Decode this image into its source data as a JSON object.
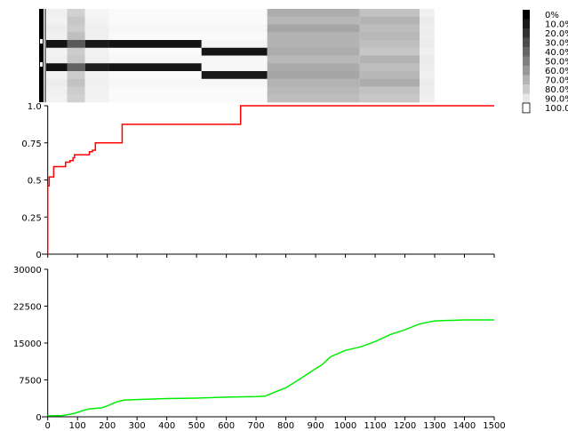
{
  "chart_data": [
    {
      "type": "heatmap",
      "x_range": [
        0,
        1500
      ],
      "colorbar": {
        "labels": [
          "0%",
          "10.0%",
          "20.0%",
          "30.0%",
          "40.0%",
          "50.0%",
          "60.0%",
          "70.0%",
          "80.0%",
          "90.0%",
          "100.0%"
        ],
        "values": [
          0,
          10,
          20,
          30,
          40,
          50,
          60,
          70,
          80,
          90,
          100
        ],
        "colors": [
          "#000000",
          "#1a1a1a",
          "#333333",
          "#4d4d4d",
          "#666666",
          "#808080",
          "#999999",
          "#b3b3b3",
          "#cccccc",
          "#e6e6e6",
          "#ffffff"
        ]
      },
      "rows": [
        {
          "segments": [
            [
              0,
              70,
              0.06
            ],
            [
              70,
              130,
              0.18
            ],
            [
              130,
              210,
              0.04
            ],
            [
              210,
              740,
              0.02
            ],
            [
              740,
              1050,
              0.32
            ],
            [
              1050,
              1250,
              0.24
            ],
            [
              1250,
              1300,
              0.06
            ]
          ]
        },
        {
          "segments": [
            [
              0,
              70,
              0.05
            ],
            [
              70,
              130,
              0.22
            ],
            [
              130,
              210,
              0.05
            ],
            [
              210,
              740,
              0.02
            ],
            [
              740,
              1050,
              0.28
            ],
            [
              1050,
              1250,
              0.3
            ],
            [
              1250,
              1300,
              0.08
            ]
          ]
        },
        {
          "segments": [
            [
              0,
              70,
              0.07
            ],
            [
              70,
              130,
              0.2
            ],
            [
              130,
              210,
              0.06
            ],
            [
              210,
              740,
              0.03
            ],
            [
              740,
              1050,
              0.35
            ],
            [
              1050,
              1250,
              0.26
            ],
            [
              1250,
              1300,
              0.07
            ]
          ]
        },
        {
          "segments": [
            [
              0,
              70,
              0.06
            ],
            [
              70,
              130,
              0.25
            ],
            [
              130,
              210,
              0.06
            ],
            [
              210,
              740,
              0.02
            ],
            [
              740,
              1050,
              0.3
            ],
            [
              1050,
              1250,
              0.28
            ],
            [
              1250,
              1300,
              0.07
            ]
          ]
        },
        {
          "segments": [
            [
              0,
              70,
              0.92
            ],
            [
              70,
              130,
              0.65
            ],
            [
              130,
              210,
              0.9
            ],
            [
              210,
              520,
              0.93
            ],
            [
              520,
              740,
              0.04
            ],
            [
              740,
              1050,
              0.3
            ],
            [
              1050,
              1250,
              0.25
            ],
            [
              1250,
              1300,
              0.08
            ]
          ]
        },
        {
          "segments": [
            [
              0,
              70,
              0.05
            ],
            [
              70,
              130,
              0.2
            ],
            [
              130,
              210,
              0.05
            ],
            [
              210,
              520,
              0.02
            ],
            [
              520,
              740,
              0.92
            ],
            [
              740,
              1050,
              0.32
            ],
            [
              1050,
              1250,
              0.22
            ],
            [
              1250,
              1300,
              0.06
            ]
          ]
        },
        {
          "segments": [
            [
              0,
              70,
              0.06
            ],
            [
              70,
              130,
              0.22
            ],
            [
              130,
              210,
              0.06
            ],
            [
              210,
              740,
              0.03
            ],
            [
              740,
              1050,
              0.28
            ],
            [
              1050,
              1250,
              0.3
            ],
            [
              1250,
              1300,
              0.08
            ]
          ]
        },
        {
          "segments": [
            [
              0,
              70,
              0.93
            ],
            [
              70,
              130,
              0.62
            ],
            [
              130,
              210,
              0.88
            ],
            [
              210,
              520,
              0.92
            ],
            [
              520,
              740,
              0.03
            ],
            [
              740,
              1050,
              0.33
            ],
            [
              1050,
              1250,
              0.26
            ],
            [
              1250,
              1300,
              0.07
            ]
          ]
        },
        {
          "segments": [
            [
              0,
              70,
              0.05
            ],
            [
              70,
              130,
              0.2
            ],
            [
              130,
              210,
              0.05
            ],
            [
              210,
              520,
              0.02
            ],
            [
              520,
              740,
              0.9
            ],
            [
              740,
              1050,
              0.35
            ],
            [
              1050,
              1250,
              0.28
            ],
            [
              1250,
              1300,
              0.06
            ]
          ]
        },
        {
          "segments": [
            [
              0,
              70,
              0.07
            ],
            [
              70,
              130,
              0.24
            ],
            [
              130,
              210,
              0.06
            ],
            [
              210,
              740,
              0.03
            ],
            [
              740,
              1050,
              0.3
            ],
            [
              1050,
              1250,
              0.32
            ],
            [
              1250,
              1300,
              0.08
            ]
          ]
        },
        {
          "segments": [
            [
              0,
              70,
              0.06
            ],
            [
              70,
              130,
              0.2
            ],
            [
              130,
              210,
              0.05
            ],
            [
              210,
              740,
              0.02
            ],
            [
              740,
              1050,
              0.28
            ],
            [
              1050,
              1250,
              0.24
            ],
            [
              1250,
              1300,
              0.07
            ]
          ]
        },
        {
          "segments": [
            [
              0,
              70,
              0.05
            ],
            [
              70,
              130,
              0.18
            ],
            [
              130,
              210,
              0.05
            ],
            [
              210,
              740,
              0.02
            ],
            [
              740,
              1050,
              0.26
            ],
            [
              1050,
              1250,
              0.22
            ],
            [
              1250,
              1300,
              0.06
            ]
          ]
        }
      ]
    },
    {
      "type": "line",
      "color": "#ff0000",
      "step": true,
      "xlim": [
        -20,
        1500
      ],
      "ylim": [
        0,
        1.0
      ],
      "yticks": [
        0,
        0.25,
        0.5,
        0.75,
        1.0
      ],
      "ytick_labels": [
        "0",
        "0.25",
        "0.5",
        "0.75",
        "1.0"
      ],
      "xticks": [
        0,
        100,
        200,
        300,
        400,
        500,
        600,
        700,
        800,
        900,
        1000,
        1100,
        1200,
        1300,
        1400,
        1500
      ],
      "x": [
        0,
        0,
        5,
        5,
        20,
        20,
        60,
        60,
        75,
        75,
        85,
        85,
        90,
        90,
        140,
        140,
        150,
        150,
        160,
        160,
        250,
        250,
        648,
        648,
        1500
      ],
      "y": [
        0,
        0.46,
        0.46,
        0.52,
        0.52,
        0.59,
        0.59,
        0.62,
        0.62,
        0.63,
        0.63,
        0.65,
        0.65,
        0.67,
        0.67,
        0.69,
        0.69,
        0.7,
        0.7,
        0.75,
        0.75,
        0.875,
        0.875,
        1.0,
        1.0
      ]
    },
    {
      "type": "line",
      "color": "#00ee00",
      "xlim": [
        -20,
        1500
      ],
      "ylim": [
        0,
        30000
      ],
      "yticks": [
        0,
        7500,
        15000,
        22500,
        30000
      ],
      "ytick_labels": [
        "0",
        "7500",
        "15000",
        "22500",
        "30000"
      ],
      "xticks": [
        0,
        100,
        200,
        300,
        400,
        500,
        600,
        700,
        800,
        900,
        1000,
        1100,
        1200,
        1300,
        1400,
        1500
      ],
      "xtick_labels": [
        "0",
        "100",
        "200",
        "300",
        "400",
        "500",
        "600",
        "700",
        "800",
        "900",
        "1000",
        "1100",
        "1200",
        "1300",
        "1400",
        "1500"
      ],
      "x": [
        0,
        50,
        90,
        120,
        140,
        180,
        200,
        230,
        255,
        300,
        400,
        500,
        600,
        700,
        730,
        750,
        800,
        850,
        900,
        920,
        950,
        1000,
        1050,
        1100,
        1150,
        1200,
        1250,
        1300,
        1350,
        1400,
        1500
      ],
      "y": [
        200,
        250,
        700,
        1300,
        1600,
        1800,
        2200,
        3000,
        3400,
        3500,
        3700,
        3800,
        4000,
        4100,
        4200,
        4700,
        5900,
        7800,
        9800,
        10500,
        12200,
        13500,
        14200,
        15300,
        16700,
        17700,
        18900,
        19500,
        19600,
        19700,
        19700
      ]
    }
  ]
}
